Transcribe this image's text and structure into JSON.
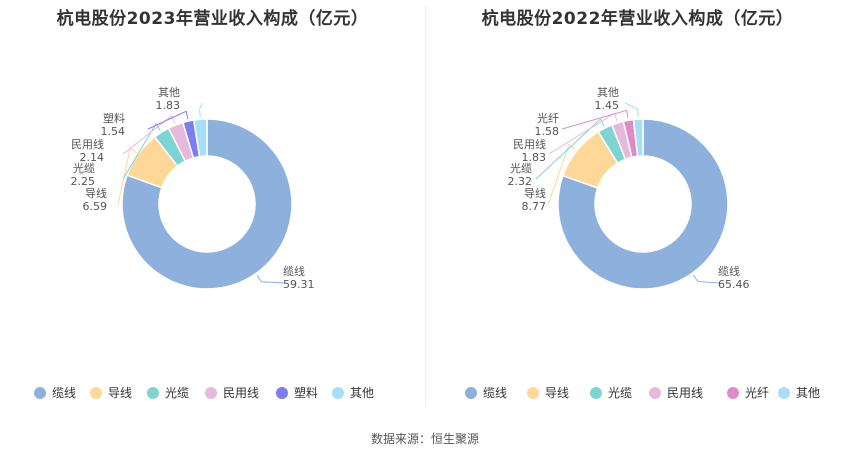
{
  "chart_data": [
    {
      "type": "pie",
      "title": "杭电股份2023年营业收入构成（亿元）",
      "categories": [
        "缆线",
        "导线",
        "光缆",
        "民用线",
        "塑料",
        "其他"
      ],
      "values": [
        59.31,
        6.59,
        2.25,
        2.14,
        1.54,
        1.83
      ],
      "value_labels": [
        "59.31",
        "6.59",
        "2.25",
        "2.14",
        "1.54",
        "1.83"
      ],
      "colors": [
        "#8eb0dc",
        "#fdd896",
        "#7ed3d3",
        "#e6b9dc",
        "#7b7df0",
        "#a6def8"
      ],
      "donut": true,
      "legend_position": "bottom"
    },
    {
      "type": "pie",
      "title": "杭电股份2022年营业收入构成（亿元）",
      "categories": [
        "缆线",
        "导线",
        "光缆",
        "民用线",
        "光纤",
        "其他"
      ],
      "values": [
        65.46,
        8.77,
        2.32,
        1.83,
        1.58,
        1.45
      ],
      "value_labels": [
        "65.46",
        "8.77",
        "2.32",
        "1.83",
        "1.58",
        "1.45"
      ],
      "colors": [
        "#8eb0dc",
        "#fdd896",
        "#7ed3d3",
        "#e6b9dc",
        "#dd8cc8",
        "#a6def8"
      ],
      "donut": true,
      "legend_position": "bottom"
    }
  ],
  "footer": {
    "source": "数据来源：恒生聚源"
  }
}
